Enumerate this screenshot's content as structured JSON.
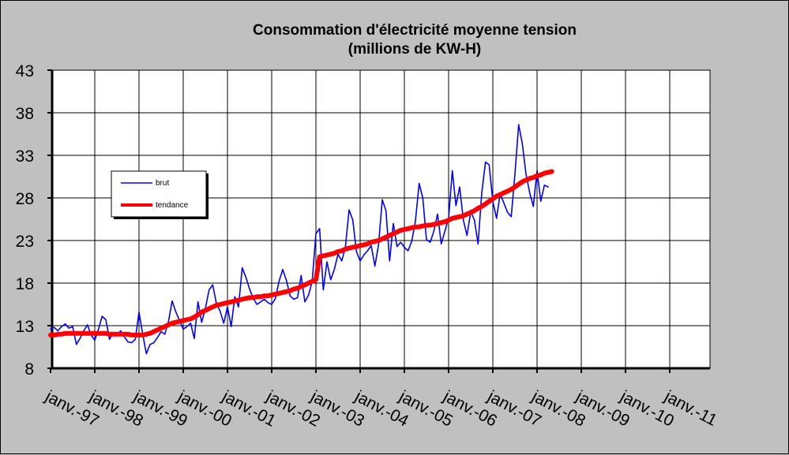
{
  "chart_data": {
    "type": "line",
    "title": "Consommation d'électricité moyenne tension",
    "subtitle": "(millions de KW-H)",
    "xlabel": "",
    "ylabel": "",
    "ylim": [
      8,
      43
    ],
    "yticks": [
      "43",
      "38",
      "33",
      "28",
      "23",
      "18",
      "13",
      "8"
    ],
    "xticks": [
      "janv.-97",
      "janv.-98",
      "janv.-99",
      "janv.-00",
      "janv.-01",
      "janv.-02",
      "janv.-03",
      "janv.-04",
      "janv.-05",
      "janv.-06",
      "janv.-07",
      "janv.-08",
      "janv.-09",
      "janv.-10",
      "janv.-11"
    ],
    "grid": true,
    "legend_position": "left",
    "series": [
      {
        "name": "brut",
        "color": "#0000ff",
        "values": [
          12.6,
          12.8,
          12.4,
          12.9,
          13.2,
          12.7,
          12.9,
          10.8,
          11.5,
          12.4,
          13.1,
          11.9,
          11.3,
          12.6,
          14.1,
          13.7,
          11.4,
          12.2,
          11.8,
          12.4,
          11.7,
          11.1,
          11.0,
          11.4,
          14.6,
          12.0,
          9.7,
          10.8,
          11.0,
          11.6,
          12.3,
          12.0,
          13.5,
          15.9,
          14.6,
          13.6,
          12.6,
          12.9,
          13.3,
          11.5,
          15.8,
          13.4,
          15.0,
          17.2,
          17.8,
          15.6,
          14.7,
          13.3,
          15.2,
          12.9,
          16.4,
          15.2,
          19.8,
          18.7,
          17.3,
          16.2,
          15.5,
          15.8,
          16.1,
          15.7,
          15.5,
          16.2,
          18.2,
          19.6,
          18.3,
          16.5,
          16.1,
          16.3,
          18.9,
          15.8,
          16.6,
          18.2,
          23.8,
          24.4,
          17.2,
          20.5,
          18.4,
          19.6,
          21.4,
          20.6,
          22.2,
          26.6,
          25.4,
          21.7,
          20.6,
          21.3,
          21.8,
          22.4,
          20.0,
          22.5,
          27.8,
          26.5,
          20.6,
          25.0,
          22.3,
          22.8,
          22.2,
          21.8,
          22.9,
          25.3,
          29.7,
          28.0,
          23.1,
          22.8,
          24.1,
          26.1,
          22.6,
          24.1,
          25.6,
          31.2,
          27.1,
          29.3,
          25.4,
          23.6,
          26.4,
          25.4,
          22.6,
          28.6,
          32.2,
          31.9,
          27.6,
          25.6,
          28.5,
          27.4,
          26.3,
          25.8,
          30.8,
          36.6,
          34.4,
          30.8,
          28.6,
          27.0,
          31.2,
          27.6,
          29.5,
          29.3
        ]
      },
      {
        "name": "tendance",
        "color": "#ff0000",
        "values": [
          11.9,
          11.9,
          12.0,
          12.0,
          12.1,
          12.1,
          12.1,
          12.1,
          12.1,
          12.1,
          12.1,
          12.1,
          12.1,
          12.1,
          12.1,
          12.1,
          12.0,
          12.0,
          12.0,
          12.0,
          12.0,
          12.0,
          11.9,
          11.9,
          11.9,
          11.9,
          12.0,
          12.1,
          12.3,
          12.5,
          12.7,
          12.9,
          13.1,
          13.3,
          13.4,
          13.5,
          13.6,
          13.7,
          13.8,
          14.0,
          14.3,
          14.6,
          14.8,
          15.0,
          15.2,
          15.4,
          15.5,
          15.6,
          15.7,
          15.8,
          15.9,
          16.0,
          16.1,
          16.2,
          16.3,
          16.3,
          16.4,
          16.4,
          16.5,
          16.5,
          16.6,
          16.7,
          16.8,
          16.9,
          17.0,
          17.1,
          17.3,
          17.4,
          17.6,
          17.8,
          18.0,
          18.2,
          18.4,
          21.1,
          21.2,
          21.3,
          21.4,
          21.5,
          21.7,
          21.8,
          22.0,
          22.1,
          22.2,
          22.3,
          22.4,
          22.5,
          22.6,
          22.8,
          22.9,
          23.0,
          23.2,
          23.4,
          23.6,
          23.8,
          24.0,
          24.2,
          24.3,
          24.4,
          24.5,
          24.6,
          24.6,
          24.7,
          24.8,
          24.8,
          24.9,
          25.0,
          25.1,
          25.2,
          25.4,
          25.6,
          25.7,
          25.8,
          25.9,
          26.1,
          26.3,
          26.5,
          26.8,
          27.0,
          27.3,
          27.6,
          27.9,
          28.2,
          28.4,
          28.6,
          28.8,
          29.0,
          29.3,
          29.6,
          29.9,
          30.1,
          30.3,
          30.4,
          30.6,
          30.7,
          30.9,
          31.0,
          31.1
        ]
      }
    ],
    "legend": [
      {
        "label": "brut",
        "color": "#0000ff"
      },
      {
        "label": "tendance",
        "color": "#ff0000"
      }
    ]
  }
}
